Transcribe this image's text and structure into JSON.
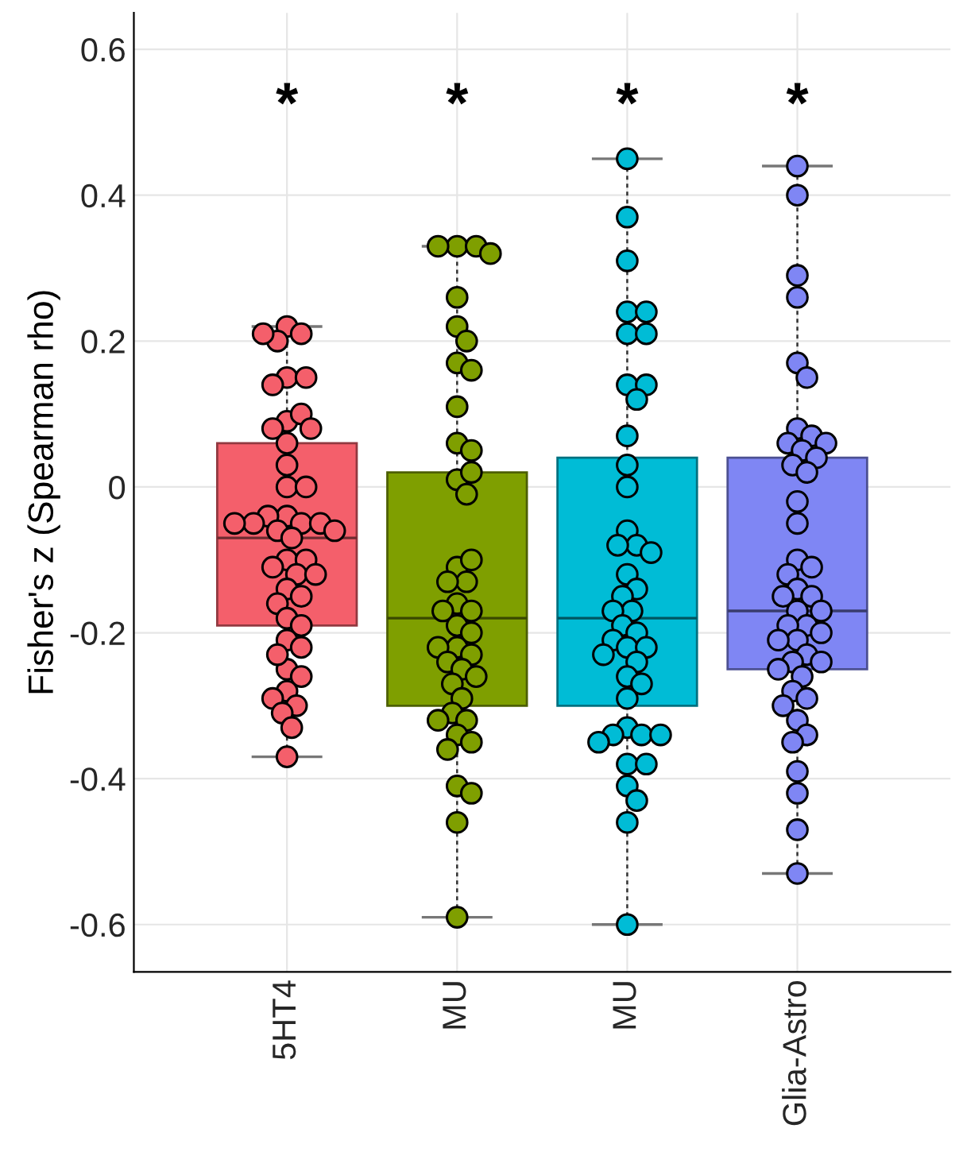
{
  "chart_data": {
    "type": "box",
    "ylabel": "Fisher's z (Spearman rho)",
    "categories": [
      "5HT4",
      "MU",
      "MU",
      "Glia-Astro"
    ],
    "colors": [
      "#f45f6b",
      "#7f9f00",
      "#00bcd6",
      "#7f86f4"
    ],
    "boxes": [
      {
        "low": -0.37,
        "q1": -0.19,
        "median": -0.07,
        "q3": 0.06,
        "high": 0.22,
        "outliers": [
          0.22,
          0.21,
          0.2,
          0.21,
          0.15,
          0.15,
          0.14,
          0.09,
          0.1,
          0.08,
          0.08,
          0.06,
          0.03,
          0.0,
          0.0,
          -0.04,
          -0.05,
          -0.04,
          -0.05,
          -0.05,
          -0.06,
          -0.06,
          -0.07,
          -0.05,
          -0.1,
          -0.1,
          -0.11,
          -0.12,
          -0.12,
          -0.14,
          -0.15,
          -0.16,
          -0.18,
          -0.19,
          -0.21,
          -0.22,
          -0.25,
          -0.23,
          -0.26,
          -0.28,
          -0.3,
          -0.29,
          -0.31,
          -0.33,
          -0.37
        ]
      },
      {
        "low": -0.59,
        "q1": -0.3,
        "median": -0.18,
        "q3": 0.02,
        "high": 0.33,
        "outliers": [
          0.33,
          0.33,
          0.33,
          0.32,
          0.26,
          0.22,
          0.2,
          0.17,
          0.16,
          0.11,
          0.06,
          0.05,
          0.01,
          0.02,
          -0.01,
          -0.11,
          -0.1,
          -0.13,
          -0.13,
          -0.16,
          -0.17,
          -0.17,
          -0.19,
          -0.2,
          -0.22,
          -0.22,
          -0.23,
          -0.24,
          -0.25,
          -0.26,
          -0.27,
          -0.29,
          -0.31,
          -0.32,
          -0.32,
          -0.34,
          -0.35,
          -0.36,
          -0.41,
          -0.42,
          -0.46,
          -0.59
        ]
      },
      {
        "low": -0.6,
        "q1": -0.3,
        "median": -0.18,
        "q3": 0.04,
        "high": 0.45,
        "outliers": [
          0.45,
          0.37,
          0.31,
          0.24,
          0.24,
          0.21,
          0.21,
          0.14,
          0.14,
          0.12,
          0.07,
          0.03,
          0.0,
          -0.06,
          -0.08,
          -0.08,
          -0.09,
          -0.12,
          -0.14,
          -0.15,
          -0.17,
          -0.17,
          -0.19,
          -0.2,
          -0.21,
          -0.22,
          -0.22,
          -0.23,
          -0.24,
          -0.26,
          -0.27,
          -0.29,
          -0.33,
          -0.34,
          -0.34,
          -0.34,
          -0.35,
          -0.38,
          -0.38,
          -0.41,
          -0.43,
          -0.46,
          -0.6
        ]
      },
      {
        "low": -0.53,
        "q1": -0.25,
        "median": -0.17,
        "q3": 0.04,
        "high": 0.44,
        "outliers": [
          0.44,
          0.4,
          0.29,
          0.26,
          0.17,
          0.15,
          0.08,
          0.07,
          0.06,
          0.06,
          0.05,
          0.03,
          0.04,
          0.02,
          -0.02,
          -0.05,
          -0.1,
          -0.11,
          -0.12,
          -0.14,
          -0.15,
          -0.15,
          -0.17,
          -0.17,
          -0.19,
          -0.19,
          -0.2,
          -0.21,
          -0.21,
          -0.23,
          -0.24,
          -0.24,
          -0.25,
          -0.26,
          -0.28,
          -0.29,
          -0.3,
          -0.32,
          -0.34,
          -0.35,
          -0.39,
          -0.42,
          -0.47,
          -0.53
        ]
      }
    ],
    "annotations": [
      "*",
      "*",
      "*",
      "*"
    ],
    "ylim": [
      -0.665,
      0.65
    ],
    "yticks": [
      -0.6,
      -0.4,
      -0.2,
      0,
      0.2,
      0.4,
      0.6
    ],
    "grid": true,
    "marker": "circle"
  }
}
